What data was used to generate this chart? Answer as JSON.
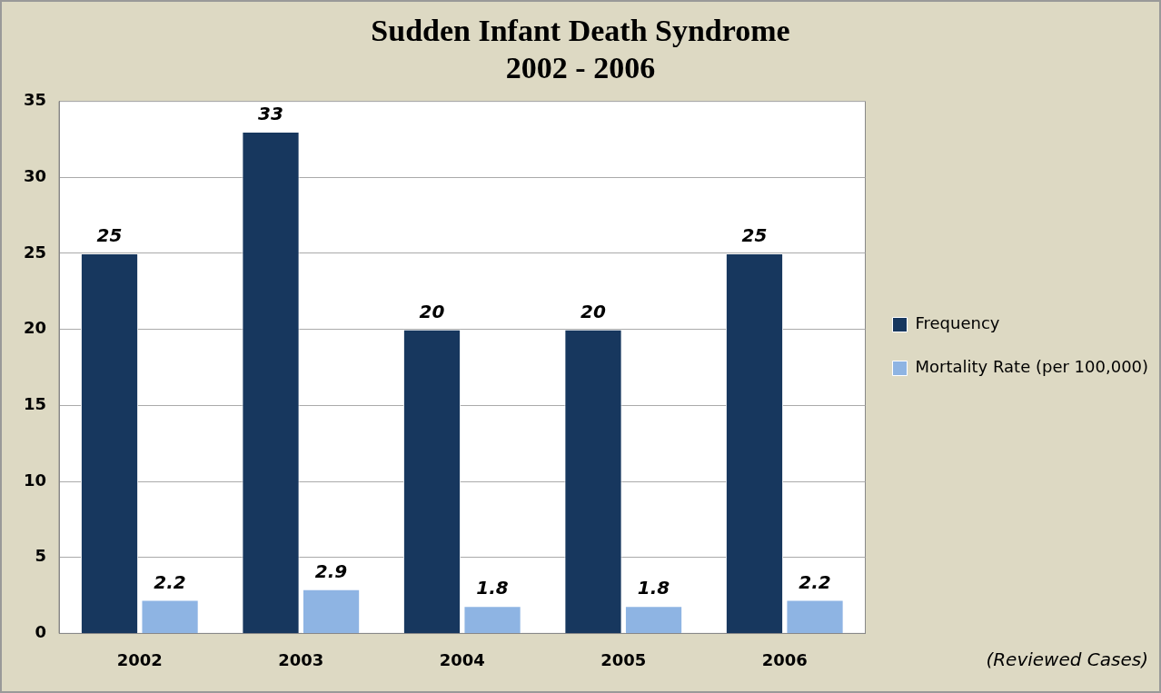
{
  "chart_data": {
    "type": "bar",
    "title": "Sudden Infant Death Syndrome\n2002 - 2006",
    "categories": [
      "2002",
      "2003",
      "2004",
      "2005",
      "2006"
    ],
    "series": [
      {
        "name": "Frequency",
        "color": "#17375e",
        "values": [
          25,
          33,
          20,
          20,
          25
        ]
      },
      {
        "name": "Mortality Rate (per 100,000)",
        "color": "#8eb4e3",
        "values": [
          2.2,
          2.9,
          1.8,
          1.8,
          2.2
        ]
      }
    ],
    "ylim": [
      0,
      35
    ],
    "yticks": [
      0,
      5,
      10,
      15,
      20,
      25,
      30,
      35
    ],
    "grid": "y",
    "legend": "right",
    "data_labels": true,
    "annotations": [
      "(Reviewed Cases)"
    ]
  }
}
